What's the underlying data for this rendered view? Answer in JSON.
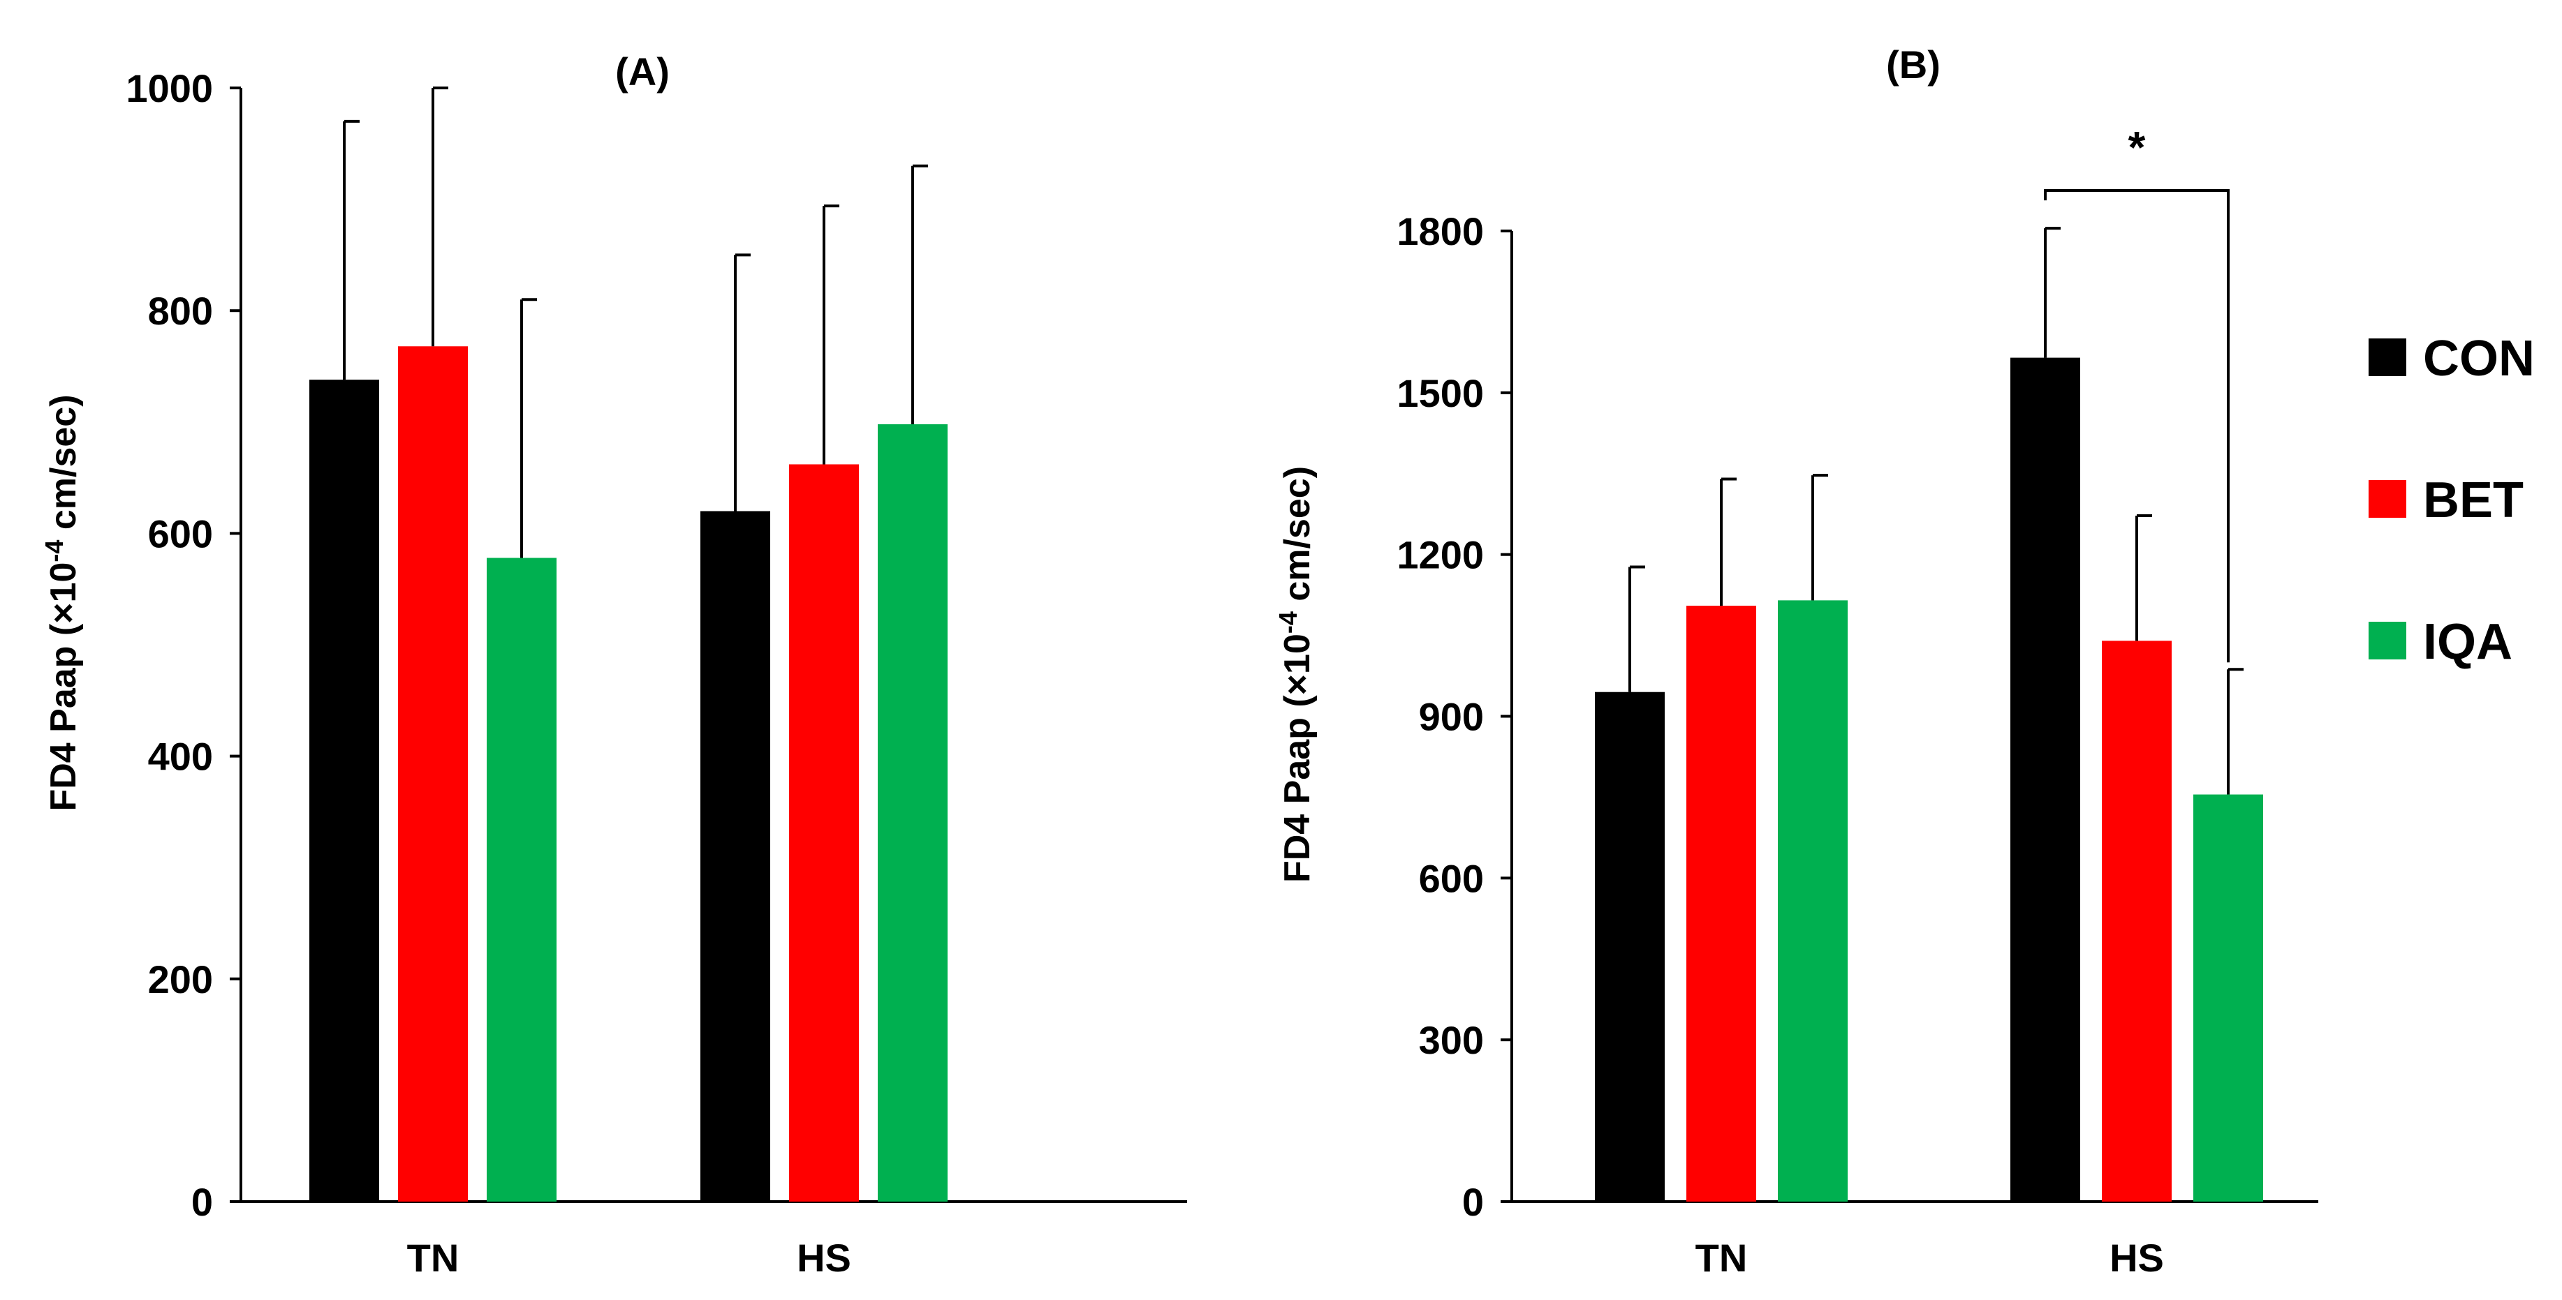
{
  "legend": [
    {
      "label": "CON",
      "color": "#000000"
    },
    {
      "label": "BET",
      "color": "#ff0000"
    },
    {
      "label": "IQA",
      "color": "#00b050"
    }
  ],
  "chart_data": [
    {
      "type": "bar",
      "title": "(A)",
      "xlabel": "",
      "ylabel_main": "FD4  Paap (×10",
      "ylabel_exp": "-4",
      "ylabel_unit": " cm/sec)",
      "categories": [
        "TN",
        "HS"
      ],
      "ylim": [
        0,
        1000
      ],
      "yticks": [
        0,
        200,
        400,
        600,
        800,
        1000
      ],
      "series": [
        {
          "name": "CON",
          "color": "#000000",
          "values": [
            738,
            620
          ],
          "errors": [
            232,
            230
          ]
        },
        {
          "name": "BET",
          "color": "#ff0000",
          "values": [
            768,
            662
          ],
          "errors": [
            232,
            232
          ]
        },
        {
          "name": "IQA",
          "color": "#00b050",
          "values": [
            578,
            698
          ],
          "errors": [
            232,
            232
          ]
        }
      ],
      "annotations": []
    },
    {
      "type": "bar",
      "title": "(B)",
      "xlabel": "",
      "ylabel_main": "FD4  Paap (×10",
      "ylabel_exp": "-4",
      "ylabel_unit": " cm/sec)",
      "categories": [
        "TN",
        "HS"
      ],
      "ylim": [
        0,
        1800
      ],
      "yticks": [
        0,
        300,
        600,
        900,
        1200,
        1500,
        1800
      ],
      "series": [
        {
          "name": "CON",
          "color": "#000000",
          "values": [
            945,
            1565
          ],
          "errors": [
            232,
            240
          ]
        },
        {
          "name": "BET",
          "color": "#ff0000",
          "values": [
            1105,
            1040
          ],
          "errors": [
            235,
            232
          ]
        },
        {
          "name": "IQA",
          "color": "#00b050",
          "values": [
            1115,
            755
          ],
          "errors": [
            232,
            232
          ]
        }
      ],
      "annotations": [
        {
          "type": "significance",
          "label": "*",
          "category": "HS",
          "from_series": "CON",
          "to_series": "IQA",
          "bracket_y": 1875
        }
      ]
    }
  ]
}
